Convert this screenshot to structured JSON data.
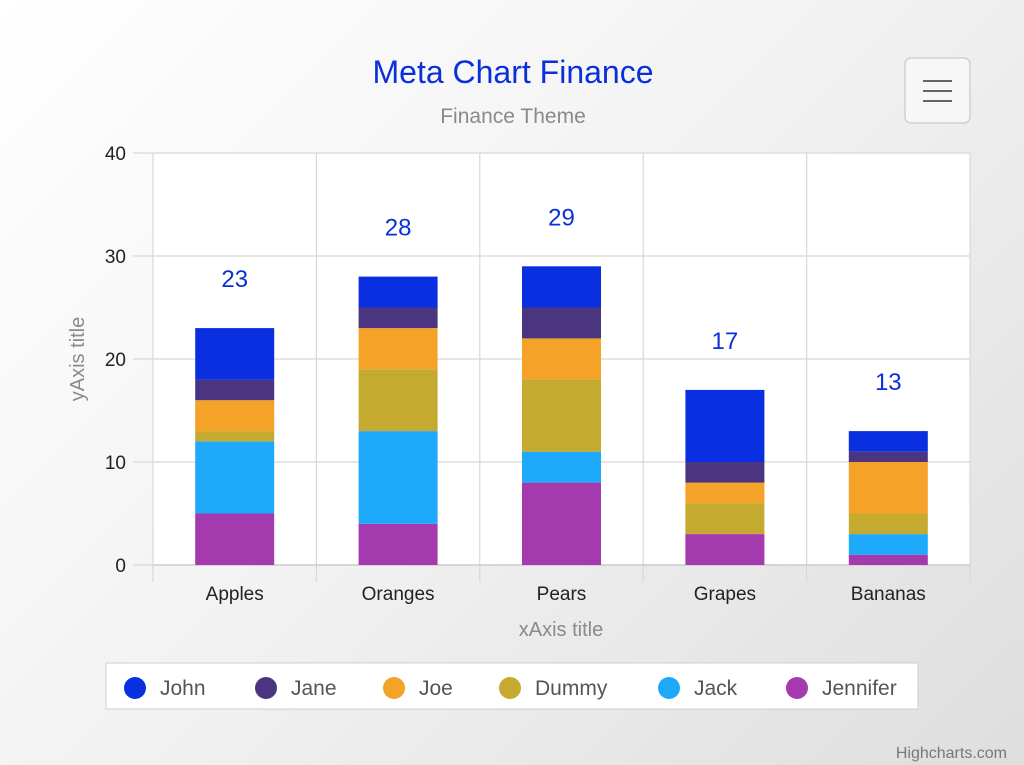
{
  "title": "Meta Chart Finance",
  "subtitle": "Finance Theme",
  "credits": "Highcharts.com",
  "menu_icon": "hamburger-menu-icon",
  "chart_data": {
    "type": "bar",
    "stacked": true,
    "orientation": "vertical",
    "title": "Meta Chart Finance",
    "subtitle": "Finance Theme",
    "xlabel": "xAxis title",
    "ylabel": "yAxis title",
    "categories": [
      "Apples",
      "Oranges",
      "Pears",
      "Grapes",
      "Bananas"
    ],
    "ylim": [
      0,
      40
    ],
    "yticks": [
      0,
      10,
      20,
      30,
      40
    ],
    "grid": true,
    "legend": "bottom-center",
    "series": [
      {
        "name": "John",
        "color": "#0a2fe0",
        "values": [
          5,
          3,
          4,
          7,
          2
        ]
      },
      {
        "name": "Jane",
        "color": "#4b3480",
        "values": [
          2,
          2,
          3,
          2,
          1
        ]
      },
      {
        "name": "Joe",
        "color": "#f5a229",
        "values": [
          3,
          4,
          4,
          2,
          5
        ]
      },
      {
        "name": "Dummy",
        "color": "#c4aa2e",
        "values": [
          1,
          6,
          7,
          3,
          2
        ]
      },
      {
        "name": "Jack",
        "color": "#1ea9fb",
        "values": [
          7,
          9,
          3,
          0,
          2
        ]
      },
      {
        "name": "Jennifer",
        "color": "#a43aae",
        "values": [
          5,
          4,
          8,
          3,
          1
        ]
      }
    ],
    "totals": [
      23,
      28,
      29,
      17,
      13
    ]
  }
}
